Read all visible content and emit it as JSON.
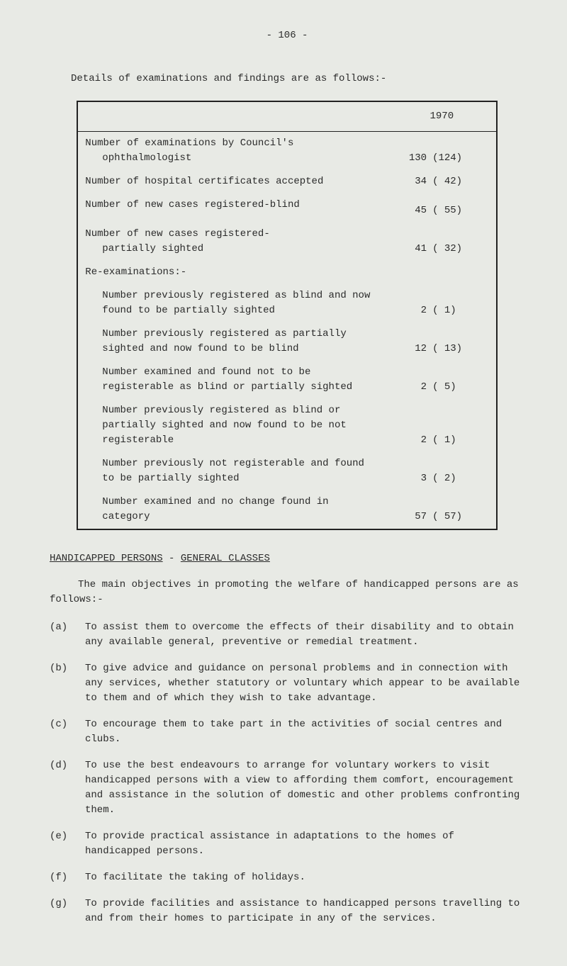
{
  "page_number": "- 106 -",
  "intro_text": "Details of examinations and findings are as follows:-",
  "table": {
    "year_header": "1970",
    "rows": [
      {
        "label": "Number of examinations by Council's",
        "label2": "ophthalmologist",
        "val1": "130",
        "val2": "(124)",
        "indent": false
      },
      {
        "label": "Number of hospital certificates accepted",
        "val1": "34",
        "val2": "( 42)",
        "indent": false
      },
      {
        "label": "Number of new cases registered-blind",
        "val1": "45",
        "val2": "( 55)",
        "indent": false,
        "gap_after": true
      },
      {
        "label": "Number of new cases registered-",
        "label2": "partially sighted",
        "val1": "41",
        "val2": "( 32)",
        "indent": false
      },
      {
        "label": "Re-examinations:-",
        "val1": "",
        "val2": "",
        "indent": false,
        "subheader": true
      },
      {
        "label": "Number previously registered as blind and now found to be partially sighted",
        "val1": "2",
        "val2": "( 1)",
        "indent": true
      },
      {
        "label": "Number previously registered as partially sighted and now found to be blind",
        "val1": "12",
        "val2": "( 13)",
        "indent": true
      },
      {
        "label": "Number examined and found not to be registerable as blind or partially sighted",
        "val1": "2",
        "val2": "( 5)",
        "indent": true
      },
      {
        "label": "Number previously registered as blind or partially sighted and now found to be not registerable",
        "val1": "2",
        "val2": "( 1)",
        "indent": true
      },
      {
        "label": "Number previously not registerable and found to be partially sighted",
        "val1": "3",
        "val2": "( 2)",
        "indent": true
      },
      {
        "label": "Number examined and no change found in category",
        "val1": "57",
        "val2": "( 57)",
        "indent": true
      }
    ]
  },
  "section_heading_1": "HANDICAPPED PERSONS",
  "section_heading_sep": " - ",
  "section_heading_2": "GENERAL CLASSES",
  "main_para": "The main objectives in promoting the welfare of handicapped persons are as follows:-",
  "objectives": [
    {
      "label": "(a)",
      "text": "To assist them to overcome the effects of their disability and to obtain any available general, preventive or remedial treatment."
    },
    {
      "label": "(b)",
      "text": "To give advice and guidance on personal problems and in connection with any services, whether statutory or voluntary which appear to be available to them and of which they wish to take advantage."
    },
    {
      "label": "(c)",
      "text": "To encourage them to take part in the activities of social centres and clubs."
    },
    {
      "label": "(d)",
      "text": "To use the best endeavours to arrange for voluntary workers to visit handicapped persons with a view to affording them comfort, encouragement and assistance in the solution of domestic and other problems confronting them."
    },
    {
      "label": "(e)",
      "text": "To provide practical assistance in adaptations to the homes of handicapped persons."
    },
    {
      "label": "(f)",
      "text": "To facilitate the taking of holidays."
    },
    {
      "label": "(g)",
      "text": "To provide facilities and assistance to handicapped persons travelling to and from their homes to participate in any of the services."
    }
  ],
  "colors": {
    "background": "#e8eae5",
    "text": "#2a2a2a",
    "border": "#222222"
  }
}
